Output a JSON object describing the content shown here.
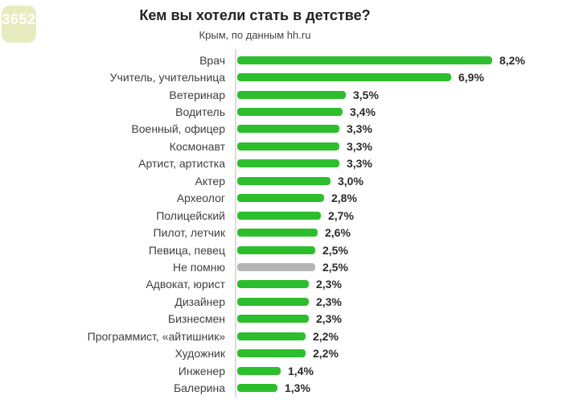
{
  "badge": {
    "label": "3652"
  },
  "header": {
    "title": "Кем вы хотели стать в детстве?",
    "subtitle": "Крым, по данным hh.ru"
  },
  "chart_data": {
    "type": "bar",
    "orientation": "horizontal",
    "title": "Кем вы хотели стать в детстве?",
    "subtitle": "Крым, по данным hh.ru",
    "unit": "%",
    "grid": false,
    "legend": false,
    "xlim": [
      0,
      8.5
    ],
    "categories": [
      "Врач",
      "Учитель, учительница",
      "Ветеринар",
      "Водитель",
      "Военный, офицер",
      "Космонавт",
      "Артист, артистка",
      "Актер",
      "Археолог",
      "Полицейский",
      "Пилот, летчик",
      "Певица, певец",
      "Не помню",
      "Адвокат, юрист",
      "Дизайнер",
      "Бизнесмен",
      "Программист, «айтишник»",
      "Художник",
      "Инженер",
      "Балерина"
    ],
    "values": [
      8.2,
      6.9,
      3.5,
      3.4,
      3.3,
      3.3,
      3.3,
      3.0,
      2.8,
      2.7,
      2.6,
      2.5,
      2.5,
      2.3,
      2.3,
      2.3,
      2.2,
      2.2,
      1.4,
      1.3
    ],
    "value_labels": [
      "8,2%",
      "6,9%",
      "3,5%",
      "3,4%",
      "3,3%",
      "3,3%",
      "3,3%",
      "3,0%",
      "2,8%",
      "2,7%",
      "2,6%",
      "2,5%",
      "2,5%",
      "2,3%",
      "2,3%",
      "2,3%",
      "2,2%",
      "2,2%",
      "1,4%",
      "1,3%"
    ],
    "muted_index": 12,
    "muted_category": "Не помню",
    "colors": {
      "bar": "#2dbe2d",
      "muted": "#b5b5b5",
      "axis": "#dcdcdc"
    }
  }
}
